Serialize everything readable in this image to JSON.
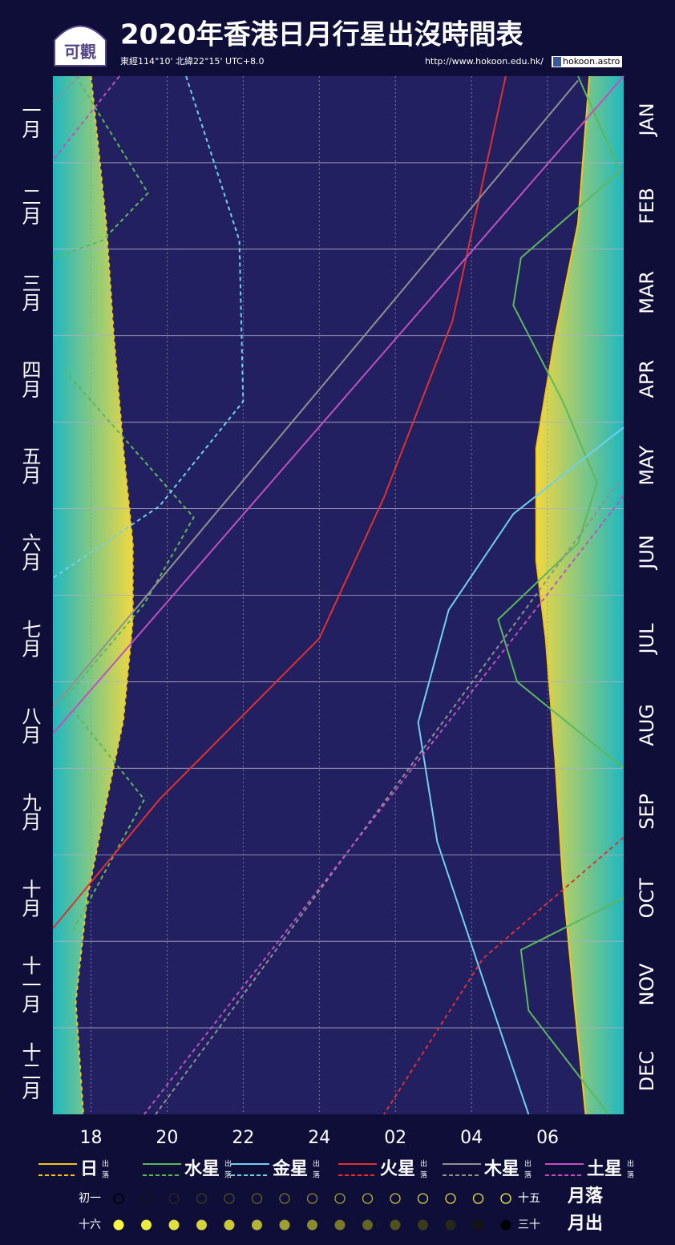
{
  "chart_data": {
    "type": "line",
    "title": "2020年香港日月行星出沒時間表",
    "subtitle": "東經114°10' 北緯22°15' UTC+8.0",
    "url": "http://www.hokoon.edu.hk/",
    "facebook": "hokoon.astro",
    "logo": "可觀",
    "months_zh": [
      "一月",
      "二月",
      "三月",
      "四月",
      "五月",
      "六月",
      "七月",
      "八月",
      "九月",
      "十月",
      "十一月",
      "十二月"
    ],
    "months_en": [
      "JAN",
      "FEB",
      "MAR",
      "APR",
      "MAY",
      "JUN",
      "JUL",
      "AUG",
      "SEP",
      "OCT",
      "NOV",
      "DEC"
    ],
    "xlim": [
      17,
      32
    ],
    "ylim": [
      0,
      12
    ],
    "xticks": [
      18,
      20,
      22,
      24,
      {
        "value": 26,
        "label": "02"
      },
      {
        "value": 28,
        "label": "04"
      },
      {
        "value": 30,
        "label": "06"
      }
    ],
    "yticks": [
      1,
      2,
      3,
      4,
      5,
      6,
      7,
      8,
      9,
      10,
      11
    ],
    "grid": true,
    "legend": {
      "rise": "出",
      "set": "落"
    },
    "series": [
      {
        "name": "日",
        "color": "#f5c518",
        "rise": {
          "x": [
            31.1,
            30.8,
            30.2,
            29.7,
            29.7,
            29.95,
            30.2,
            30.4,
            30.7,
            31.0
          ],
          "y": [
            0,
            1.7,
            3,
            4.3,
            5.6,
            6.5,
            7.9,
            9.3,
            10.7,
            12
          ]
        },
        "set": {
          "x": [
            18.0,
            18.4,
            18.6,
            18.85,
            19.1,
            19.1,
            18.85,
            18.4,
            17.9,
            17.6,
            17.8
          ],
          "y": [
            0,
            1.7,
            3,
            4.3,
            5.4,
            6.3,
            7.45,
            8.4,
            9.5,
            10.7,
            12
          ]
        }
      },
      {
        "name": "水星",
        "color": "#5cb85c",
        "rise": {
          "x": [
            30.8,
            31.9,
            29.3,
            29.1,
            30.4,
            31.3,
            30.8,
            28.7,
            29.2,
            32,
            null,
            32,
            29.3,
            29.5,
            31.6
          ],
          "y": [
            0,
            1.1,
            2.1,
            2.65,
            3.76,
            4.7,
            5.4,
            6.28,
            7.0,
            8.0,
            null,
            9.5,
            10.1,
            10.8,
            12
          ]
        },
        "set": {
          "x": [
            17.6,
            19.5,
            18.3,
            17.0,
            null,
            17.3,
            18.7,
            20.7,
            19.4,
            17.3,
            19.4,
            17.5
          ],
          "y": [
            0,
            1.35,
            1.9,
            2.1,
            null,
            3.4,
            4.1,
            5.1,
            6.1,
            7.2,
            8.36,
            9.9
          ]
        }
      },
      {
        "name": "金星",
        "color": "#6fd0f0",
        "rise": {
          "x": [
            32,
            29.1,
            27.4,
            26.6,
            27.1,
            28.5,
            29.5
          ],
          "y": [
            4.06,
            5.06,
            6.17,
            7.47,
            8.85,
            10.7,
            12
          ]
        },
        "set": {
          "x": [
            20.5,
            21.9,
            22.0,
            19.8,
            17.0
          ],
          "y": [
            0,
            1.9,
            3.76,
            4.97,
            5.8
          ]
        }
      },
      {
        "name": "火星",
        "color": "#e03030",
        "rise": {
          "x": [
            28.9,
            27.5,
            25.7,
            24.0,
            19.8,
            17.0
          ],
          "y": [
            0,
            2.83,
            4.87,
            6.5,
            8.36,
            9.85
          ]
        },
        "set": {
          "x": [
            32,
            28.3,
            25.7
          ],
          "y": [
            8.8,
            10.2,
            12
          ]
        }
      },
      {
        "name": "木星",
        "color": "#909090",
        "rise": {
          "x": [
            30.8,
            17.0
          ],
          "y": [
            0.05,
            7.3
          ]
        },
        "set": {
          "x": [
            17.7,
            17.0,
            null,
            31.85,
            19.7
          ],
          "y": [
            0,
            0.3,
            null,
            4.7,
            12
          ]
        }
      },
      {
        "name": "土星",
        "color": "#c050c0",
        "rise": {
          "x": [
            32,
            17.0
          ],
          "y": [
            0,
            7.6
          ]
        },
        "set": {
          "x": [
            18.75,
            17.0,
            null,
            32,
            19.4
          ],
          "y": [
            0,
            0.97,
            null,
            4.85,
            12
          ]
        }
      }
    ],
    "moon_legend": {
      "set_start": "初一",
      "set_end": "十五",
      "set_label": "月落",
      "rise_start": "十六",
      "rise_end": "三十",
      "rise_label": "月出",
      "set_colors": [
        "#000000",
        "#141414",
        "#282818",
        "#3c3c1c",
        "#505020",
        "#646424",
        "#787828",
        "#8c8c2c",
        "#a0a030",
        "#b4b434",
        "#c8c838",
        "#d4d43a",
        "#e0e03c",
        "#ecec3e",
        "#f8f840"
      ],
      "rise_colors": [
        "#f8f840",
        "#ecec3e",
        "#e0e03c",
        "#d4d43a",
        "#c8c838",
        "#b4b434",
        "#a0a030",
        "#8c8c2c",
        "#787828",
        "#646424",
        "#505020",
        "#3c3c1c",
        "#282818",
        "#141414",
        "#000000"
      ]
    }
  }
}
